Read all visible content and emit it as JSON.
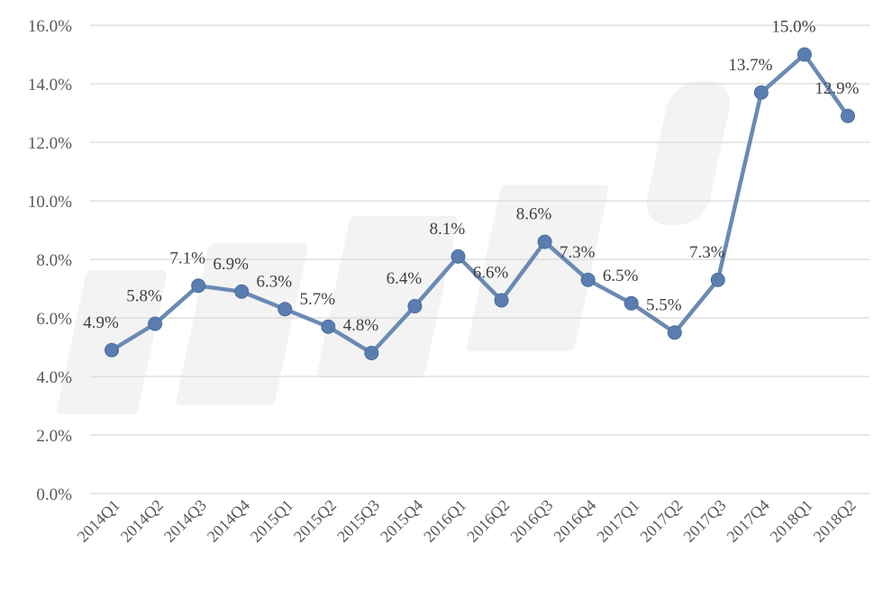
{
  "chart_data": {
    "type": "line",
    "categories": [
      "2014Q1",
      "2014Q2",
      "2014Q3",
      "2014Q4",
      "2015Q1",
      "2015Q2",
      "2015Q3",
      "2015Q4",
      "2016Q1",
      "2016Q2",
      "2016Q3",
      "2016Q4",
      "2017Q1",
      "2017Q2",
      "2017Q3",
      "2017Q4",
      "2018Q1",
      "2018Q2"
    ],
    "series": [
      {
        "values": [
          4.9,
          5.8,
          7.1,
          6.9,
          6.3,
          5.7,
          4.8,
          6.4,
          8.1,
          6.6,
          8.6,
          7.3,
          6.5,
          5.5,
          7.3,
          13.7,
          15.0,
          12.9
        ],
        "data_labels": [
          "4.9%",
          "5.8%",
          "7.1%",
          "6.9%",
          "6.3%",
          "5.7%",
          "4.8%",
          "6.4%",
          "8.1%",
          "6.6%",
          "8.6%",
          "7.3%",
          "6.5%",
          "5.5%",
          "7.3%",
          "13.7%",
          "15.0%",
          "12.9%"
        ]
      }
    ],
    "ylim": [
      0,
      16
    ],
    "y_ticks": [
      "0.0%",
      "2.0%",
      "4.0%",
      "6.0%",
      "8.0%",
      "10.0%",
      "12.0%",
      "14.0%",
      "16.0%"
    ],
    "grid": true,
    "colors": {
      "line": "#6a8ab4",
      "marker": "#5a7db0",
      "grid": "#d9d9d9",
      "text": "#595959"
    }
  }
}
